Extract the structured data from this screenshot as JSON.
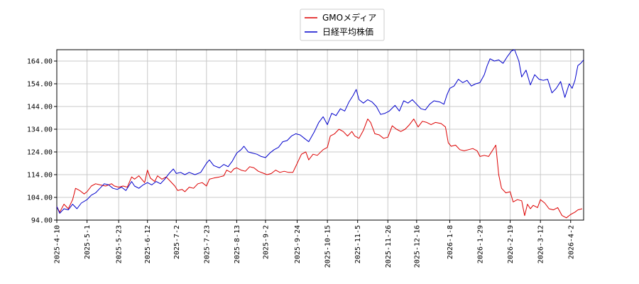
{
  "chart_data": {
    "type": "line",
    "title": "",
    "xlabel": "",
    "ylabel": "",
    "ylim": [
      94.0,
      169.0
    ],
    "y_ticks": [
      "94.00",
      "104.00",
      "114.00",
      "124.00",
      "134.00",
      "144.00",
      "154.00",
      "164.00"
    ],
    "x_ticks": [
      "2025-4-10",
      "2025-5-1",
      "2025-5-23",
      "2025-6-12",
      "2025-7-2",
      "2025-7-23",
      "2025-8-13",
      "2025-9-2",
      "2025-9-24",
      "2025-10-15",
      "2025-11-5",
      "2025-11-26",
      "2025-12-16",
      "2026-1-8",
      "2026-1-29",
      "2026-2-19",
      "2026-3-12",
      "2026-4-2"
    ],
    "grid": true,
    "legend_position": "top-center",
    "series": [
      {
        "name": "GMOメディア",
        "color": "#dd0000",
        "points": [
          [
            "2025-04-10",
            100.0
          ],
          [
            "2025-04-12",
            97.5
          ],
          [
            "2025-04-15",
            101.0
          ],
          [
            "2025-04-18",
            99.0
          ],
          [
            "2025-04-21",
            103.0
          ],
          [
            "2025-04-23",
            108.0
          ],
          [
            "2025-04-26",
            107.0
          ],
          [
            "2025-04-29",
            105.5
          ],
          [
            "2025-05-01",
            106.5
          ],
          [
            "2025-05-04",
            109.0
          ],
          [
            "2025-05-07",
            110.0
          ],
          [
            "2025-05-10",
            109.5
          ],
          [
            "2025-05-14",
            109.0
          ],
          [
            "2025-05-18",
            110.0
          ],
          [
            "2025-05-20",
            109.0
          ],
          [
            "2025-05-23",
            108.5
          ],
          [
            "2025-05-26",
            109.0
          ],
          [
            "2025-05-29",
            108.5
          ],
          [
            "2025-06-01",
            113.0
          ],
          [
            "2025-06-03",
            112.0
          ],
          [
            "2025-06-06",
            113.5
          ],
          [
            "2025-06-08",
            112.0
          ],
          [
            "2025-06-10",
            110.5
          ],
          [
            "2025-06-12",
            116.0
          ],
          [
            "2025-06-14",
            112.5
          ],
          [
            "2025-06-17",
            111.0
          ],
          [
            "2025-06-19",
            113.5
          ],
          [
            "2025-06-22",
            112.0
          ],
          [
            "2025-06-25",
            113.0
          ],
          [
            "2025-06-28",
            111.0
          ],
          [
            "2025-07-01",
            109.0
          ],
          [
            "2025-07-03",
            107.0
          ],
          [
            "2025-07-06",
            107.5
          ],
          [
            "2025-07-08",
            106.5
          ],
          [
            "2025-07-11",
            108.5
          ],
          [
            "2025-07-14",
            108.0
          ],
          [
            "2025-07-17",
            110.0
          ],
          [
            "2025-07-20",
            110.5
          ],
          [
            "2025-07-23",
            109.0
          ],
          [
            "2025-07-25",
            112.0
          ],
          [
            "2025-07-28",
            112.5
          ],
          [
            "2025-08-01",
            113.0
          ],
          [
            "2025-08-04",
            113.5
          ],
          [
            "2025-08-06",
            116.0
          ],
          [
            "2025-08-09",
            115.0
          ],
          [
            "2025-08-11",
            116.5
          ],
          [
            "2025-08-13",
            117.0
          ],
          [
            "2025-08-16",
            116.0
          ],
          [
            "2025-08-19",
            115.5
          ],
          [
            "2025-08-22",
            117.5
          ],
          [
            "2025-08-25",
            117.0
          ],
          [
            "2025-08-28",
            115.5
          ],
          [
            "2025-09-01",
            114.5
          ],
          [
            "2025-09-03",
            114.0
          ],
          [
            "2025-09-06",
            114.5
          ],
          [
            "2025-09-09",
            116.0
          ],
          [
            "2025-09-12",
            115.0
          ],
          [
            "2025-09-15",
            115.5
          ],
          [
            "2025-09-18",
            115.0
          ],
          [
            "2025-09-21",
            115.0
          ],
          [
            "2025-09-24",
            119.0
          ],
          [
            "2025-09-27",
            123.0
          ],
          [
            "2025-09-30",
            124.0
          ],
          [
            "2025-10-02",
            120.5
          ],
          [
            "2025-10-05",
            123.0
          ],
          [
            "2025-10-08",
            122.5
          ],
          [
            "2025-10-12",
            125.0
          ],
          [
            "2025-10-15",
            126.0
          ],
          [
            "2025-10-17",
            131.0
          ],
          [
            "2025-10-20",
            132.0
          ],
          [
            "2025-10-23",
            134.0
          ],
          [
            "2025-10-26",
            133.0
          ],
          [
            "2025-10-29",
            131.0
          ],
          [
            "2025-11-01",
            133.0
          ],
          [
            "2025-11-03",
            131.0
          ],
          [
            "2025-11-06",
            130.0
          ],
          [
            "2025-11-09",
            133.5
          ],
          [
            "2025-11-12",
            138.5
          ],
          [
            "2025-11-14",
            137.0
          ],
          [
            "2025-11-17",
            132.0
          ],
          [
            "2025-11-20",
            131.5
          ],
          [
            "2025-11-23",
            130.0
          ],
          [
            "2025-11-26",
            130.5
          ],
          [
            "2025-11-29",
            135.5
          ],
          [
            "2025-12-02",
            134.0
          ],
          [
            "2025-12-05",
            133.0
          ],
          [
            "2025-12-08",
            134.0
          ],
          [
            "2025-12-11",
            136.0
          ],
          [
            "2025-12-14",
            138.5
          ],
          [
            "2025-12-17",
            135.0
          ],
          [
            "2025-12-20",
            137.5
          ],
          [
            "2025-12-23",
            137.0
          ],
          [
            "2025-12-26",
            136.0
          ],
          [
            "2025-12-29",
            137.0
          ],
          [
            "2026-01-02",
            136.5
          ],
          [
            "2026-01-05",
            135.0
          ],
          [
            "2026-01-07",
            128.0
          ],
          [
            "2026-01-09",
            126.5
          ],
          [
            "2026-01-12",
            127.0
          ],
          [
            "2026-01-15",
            125.0
          ],
          [
            "2026-01-18",
            124.5
          ],
          [
            "2026-01-21",
            125.0
          ],
          [
            "2026-01-24",
            125.5
          ],
          [
            "2026-01-27",
            124.5
          ],
          [
            "2026-01-29",
            122.0
          ],
          [
            "2026-02-01",
            122.5
          ],
          [
            "2026-02-04",
            122.0
          ],
          [
            "2026-02-07",
            125.0
          ],
          [
            "2026-02-09",
            127.0
          ],
          [
            "2026-02-11",
            114.0
          ],
          [
            "2026-02-13",
            108.0
          ],
          [
            "2026-02-16",
            106.0
          ],
          [
            "2026-02-19",
            106.5
          ],
          [
            "2026-02-21",
            102.0
          ],
          [
            "2026-02-24",
            103.0
          ],
          [
            "2026-02-27",
            102.5
          ],
          [
            "2026-03-01",
            96.0
          ],
          [
            "2026-03-03",
            101.0
          ],
          [
            "2026-03-05",
            99.0
          ],
          [
            "2026-03-07",
            100.5
          ],
          [
            "2026-03-10",
            99.5
          ],
          [
            "2026-03-12",
            103.0
          ],
          [
            "2026-03-15",
            101.5
          ],
          [
            "2026-03-18",
            99.0
          ],
          [
            "2026-03-21",
            98.5
          ],
          [
            "2026-03-24",
            99.5
          ],
          [
            "2026-03-27",
            96.0
          ],
          [
            "2026-03-30",
            95.0
          ],
          [
            "2026-04-02",
            96.5
          ],
          [
            "2026-04-05",
            97.5
          ],
          [
            "2026-04-07",
            98.5
          ],
          [
            "2026-04-10",
            99.0
          ]
        ]
      },
      {
        "name": "日経平均株価",
        "color": "#0000cc",
        "points": [
          [
            "2025-04-10",
            100.0
          ],
          [
            "2025-04-12",
            97.0
          ],
          [
            "2025-04-15",
            99.0
          ],
          [
            "2025-04-18",
            98.5
          ],
          [
            "2025-04-21",
            101.0
          ],
          [
            "2025-04-24",
            99.0
          ],
          [
            "2025-04-27",
            101.5
          ],
          [
            "2025-05-01",
            103.0
          ],
          [
            "2025-05-04",
            105.0
          ],
          [
            "2025-05-07",
            106.0
          ],
          [
            "2025-05-10",
            108.0
          ],
          [
            "2025-05-13",
            110.0
          ],
          [
            "2025-05-16",
            109.5
          ],
          [
            "2025-05-19",
            108.0
          ],
          [
            "2025-05-22",
            107.5
          ],
          [
            "2025-05-25",
            108.5
          ],
          [
            "2025-05-28",
            107.0
          ],
          [
            "2025-06-01",
            111.0
          ],
          [
            "2025-06-03",
            109.0
          ],
          [
            "2025-06-06",
            108.0
          ],
          [
            "2025-06-09",
            109.5
          ],
          [
            "2025-06-12",
            110.5
          ],
          [
            "2025-06-15",
            109.5
          ],
          [
            "2025-06-18",
            111.0
          ],
          [
            "2025-06-21",
            110.0
          ],
          [
            "2025-06-24",
            112.0
          ],
          [
            "2025-06-27",
            114.5
          ],
          [
            "2025-06-30",
            116.5
          ],
          [
            "2025-07-02",
            114.5
          ],
          [
            "2025-07-05",
            115.0
          ],
          [
            "2025-07-08",
            114.0
          ],
          [
            "2025-07-11",
            115.0
          ],
          [
            "2025-07-15",
            114.0
          ],
          [
            "2025-07-19",
            115.0
          ],
          [
            "2025-07-23",
            119.0
          ],
          [
            "2025-07-25",
            120.5
          ],
          [
            "2025-07-28",
            118.0
          ],
          [
            "2025-08-01",
            117.0
          ],
          [
            "2025-08-04",
            118.5
          ],
          [
            "2025-08-07",
            117.5
          ],
          [
            "2025-08-10",
            120.0
          ],
          [
            "2025-08-13",
            123.5
          ],
          [
            "2025-08-16",
            125.0
          ],
          [
            "2025-08-18",
            126.5
          ],
          [
            "2025-08-21",
            124.0
          ],
          [
            "2025-08-24",
            123.5
          ],
          [
            "2025-08-27",
            123.0
          ],
          [
            "2025-08-30",
            122.0
          ],
          [
            "2025-09-02",
            121.5
          ],
          [
            "2025-09-05",
            123.5
          ],
          [
            "2025-09-08",
            125.0
          ],
          [
            "2025-09-11",
            126.0
          ],
          [
            "2025-09-14",
            128.5
          ],
          [
            "2025-09-17",
            129.0
          ],
          [
            "2025-09-20",
            131.0
          ],
          [
            "2025-09-23",
            132.0
          ],
          [
            "2025-09-26",
            131.5
          ],
          [
            "2025-09-29",
            130.0
          ],
          [
            "2025-10-02",
            128.5
          ],
          [
            "2025-10-06",
            133.0
          ],
          [
            "2025-10-09",
            137.0
          ],
          [
            "2025-10-12",
            139.5
          ],
          [
            "2025-10-15",
            136.0
          ],
          [
            "2025-10-18",
            141.0
          ],
          [
            "2025-10-21",
            140.0
          ],
          [
            "2025-10-24",
            143.0
          ],
          [
            "2025-10-27",
            142.0
          ],
          [
            "2025-10-30",
            146.0
          ],
          [
            "2025-11-02",
            149.0
          ],
          [
            "2025-11-04",
            151.5
          ],
          [
            "2025-11-06",
            147.0
          ],
          [
            "2025-11-09",
            145.5
          ],
          [
            "2025-11-12",
            147.0
          ],
          [
            "2025-11-15",
            146.0
          ],
          [
            "2025-11-18",
            144.0
          ],
          [
            "2025-11-21",
            140.5
          ],
          [
            "2025-11-24",
            141.0
          ],
          [
            "2025-11-27",
            142.0
          ],
          [
            "2025-12-01",
            144.5
          ],
          [
            "2025-12-04",
            142.0
          ],
          [
            "2025-12-07",
            146.5
          ],
          [
            "2025-12-10",
            145.5
          ],
          [
            "2025-12-13",
            147.0
          ],
          [
            "2025-12-16",
            145.0
          ],
          [
            "2025-12-19",
            143.0
          ],
          [
            "2025-12-22",
            142.5
          ],
          [
            "2025-12-25",
            145.0
          ],
          [
            "2025-12-28",
            146.5
          ],
          [
            "2026-01-01",
            146.0
          ],
          [
            "2026-01-04",
            145.0
          ],
          [
            "2026-01-06",
            149.0
          ],
          [
            "2026-01-08",
            152.0
          ],
          [
            "2026-01-11",
            153.0
          ],
          [
            "2026-01-14",
            156.0
          ],
          [
            "2026-01-17",
            154.5
          ],
          [
            "2026-01-20",
            155.5
          ],
          [
            "2026-01-23",
            153.0
          ],
          [
            "2026-01-26",
            154.0
          ],
          [
            "2026-01-29",
            154.5
          ],
          [
            "2026-02-01",
            158.0
          ],
          [
            "2026-02-03",
            162.0
          ],
          [
            "2026-02-05",
            165.0
          ],
          [
            "2026-02-08",
            164.0
          ],
          [
            "2026-02-11",
            164.5
          ],
          [
            "2026-02-14",
            163.0
          ],
          [
            "2026-02-17",
            166.0
          ],
          [
            "2026-02-20",
            168.5
          ],
          [
            "2026-02-22",
            169.0
          ],
          [
            "2026-02-25",
            164.0
          ],
          [
            "2026-02-27",
            157.0
          ],
          [
            "2026-03-02",
            160.0
          ],
          [
            "2026-03-05",
            153.5
          ],
          [
            "2026-03-08",
            158.0
          ],
          [
            "2026-03-11",
            156.0
          ],
          [
            "2026-03-14",
            155.5
          ],
          [
            "2026-03-17",
            156.0
          ],
          [
            "2026-03-20",
            150.0
          ],
          [
            "2026-03-23",
            152.0
          ],
          [
            "2026-03-26",
            155.0
          ],
          [
            "2026-03-29",
            148.0
          ],
          [
            "2026-04-01",
            154.0
          ],
          [
            "2026-04-03",
            152.0
          ],
          [
            "2026-04-05",
            155.5
          ],
          [
            "2026-04-07",
            162.0
          ],
          [
            "2026-04-09",
            163.0
          ],
          [
            "2026-04-11",
            164.5
          ]
        ]
      }
    ]
  }
}
